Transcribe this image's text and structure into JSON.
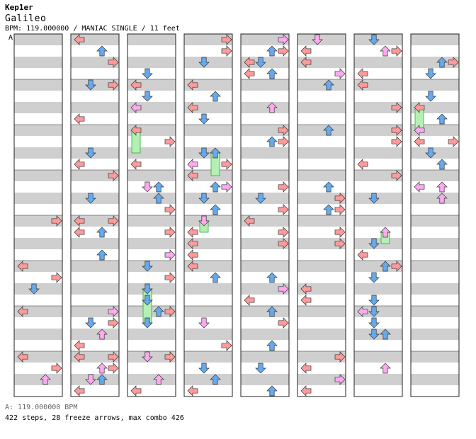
{
  "song": {
    "artist": "Kep1er",
    "title": "Galileo",
    "info": "BPM: 119.000000 / MANIAC SINGLE / 11 feet"
  },
  "bpm_marker": "A",
  "footer": {
    "bpm_line": "A: 119.000000 BPM",
    "stats_line": "422 steps, 28 freeze arrows, max combo 426"
  },
  "colors": {
    "red_arrow": "#ff9a9a",
    "blue_arrow": "#66aaee",
    "pink_arrow": "#ffaaf0",
    "freeze": "#b4f0b4",
    "stripe": "#cfcfcf"
  },
  "chart": {
    "columns": 8,
    "measures_per_column": 8,
    "lanes": [
      "left",
      "down",
      "up",
      "right"
    ],
    "steps": 422,
    "freeze_arrows": 28,
    "max_combo": 426
  }
}
